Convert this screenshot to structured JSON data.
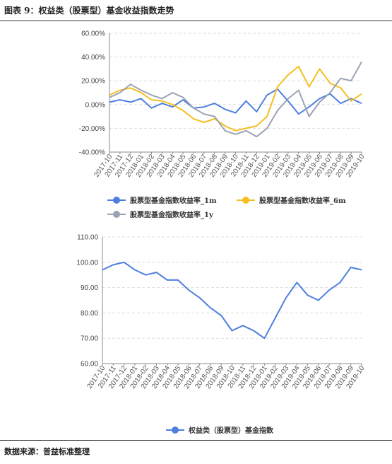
{
  "figure": {
    "title": "图表 9：权益类（股票型）基金收益指数走势",
    "source": "数据来源：普益标准整理"
  },
  "chart_data": [
    {
      "type": "line",
      "categories": [
        "2017-10",
        "2017-11",
        "2017-12",
        "2018-01",
        "2018-02",
        "2018-03",
        "2018-04",
        "2018-05",
        "2018-06",
        "2018-07",
        "2018-08",
        "2018-09",
        "2018-10",
        "2018-11",
        "2018-12",
        "2019-01",
        "2019-02",
        "2019-03",
        "2019-04",
        "2019-05",
        "2019-06",
        "2019-07",
        "2019-08",
        "2019-09",
        "2019-10"
      ],
      "y_ticks": [
        "60.00%",
        "40.00%",
        "20.00%",
        "0.00%",
        "-20.00%",
        "-40.00%"
      ],
      "ylim": [
        -40,
        60
      ],
      "grid": true,
      "legend_position": "bottom",
      "series": [
        {
          "name": "股票型基金指数收益率_1m",
          "color": "#4e7fe0",
          "values": [
            2,
            4,
            2,
            5,
            -3,
            1,
            -2,
            4,
            -3,
            -2,
            1,
            -4,
            -7,
            3,
            -6,
            8,
            13,
            3,
            -8,
            -2,
            5,
            9,
            1,
            5,
            1
          ]
        },
        {
          "name": "股票型基金指数收益率_6m",
          "color": "#f5bf22",
          "values": [
            8,
            12,
            14,
            10,
            4,
            3,
            0,
            -5,
            -12,
            -15,
            -12,
            -18,
            -22,
            -20,
            -18,
            -10,
            15,
            25,
            32,
            15,
            30,
            18,
            14,
            3,
            9
          ]
        },
        {
          "name": "股票型基金指数收益率_1y",
          "color": "#9aa3b5",
          "values": [
            6,
            10,
            17,
            12,
            8,
            5,
            10,
            6,
            -3,
            -8,
            -10,
            -22,
            -25,
            -22,
            -27,
            -20,
            -5,
            5,
            12,
            -10,
            2,
            10,
            22,
            20,
            36
          ]
        }
      ]
    },
    {
      "type": "line",
      "categories": [
        "2017-10",
        "2017-11",
        "2017-12",
        "2018-01",
        "2018-02",
        "2018-03",
        "2018-04",
        "2018-05",
        "2018-06",
        "2018-07",
        "2018-08",
        "2018-09",
        "2018-10",
        "2018-11",
        "2018-12",
        "2019-01",
        "2019-02",
        "2019-03",
        "2019-04",
        "2019-05",
        "2019-06",
        "2019-07",
        "2019-08",
        "2019-09",
        "2019-10"
      ],
      "y_ticks": [
        "110.00",
        "100.00",
        "90.00",
        "80.00",
        "70.00",
        "60.00"
      ],
      "ylim": [
        60,
        110
      ],
      "grid": true,
      "legend_position": "bottom",
      "series": [
        {
          "name": "权益类（股票型）基金指数",
          "color": "#4e7fe0",
          "values": [
            97,
            99,
            100,
            97,
            95,
            96,
            93,
            93,
            89,
            86,
            82,
            79,
            73,
            75,
            73,
            70,
            78,
            86,
            92,
            87,
            85,
            89,
            92,
            98,
            97
          ]
        }
      ]
    }
  ]
}
